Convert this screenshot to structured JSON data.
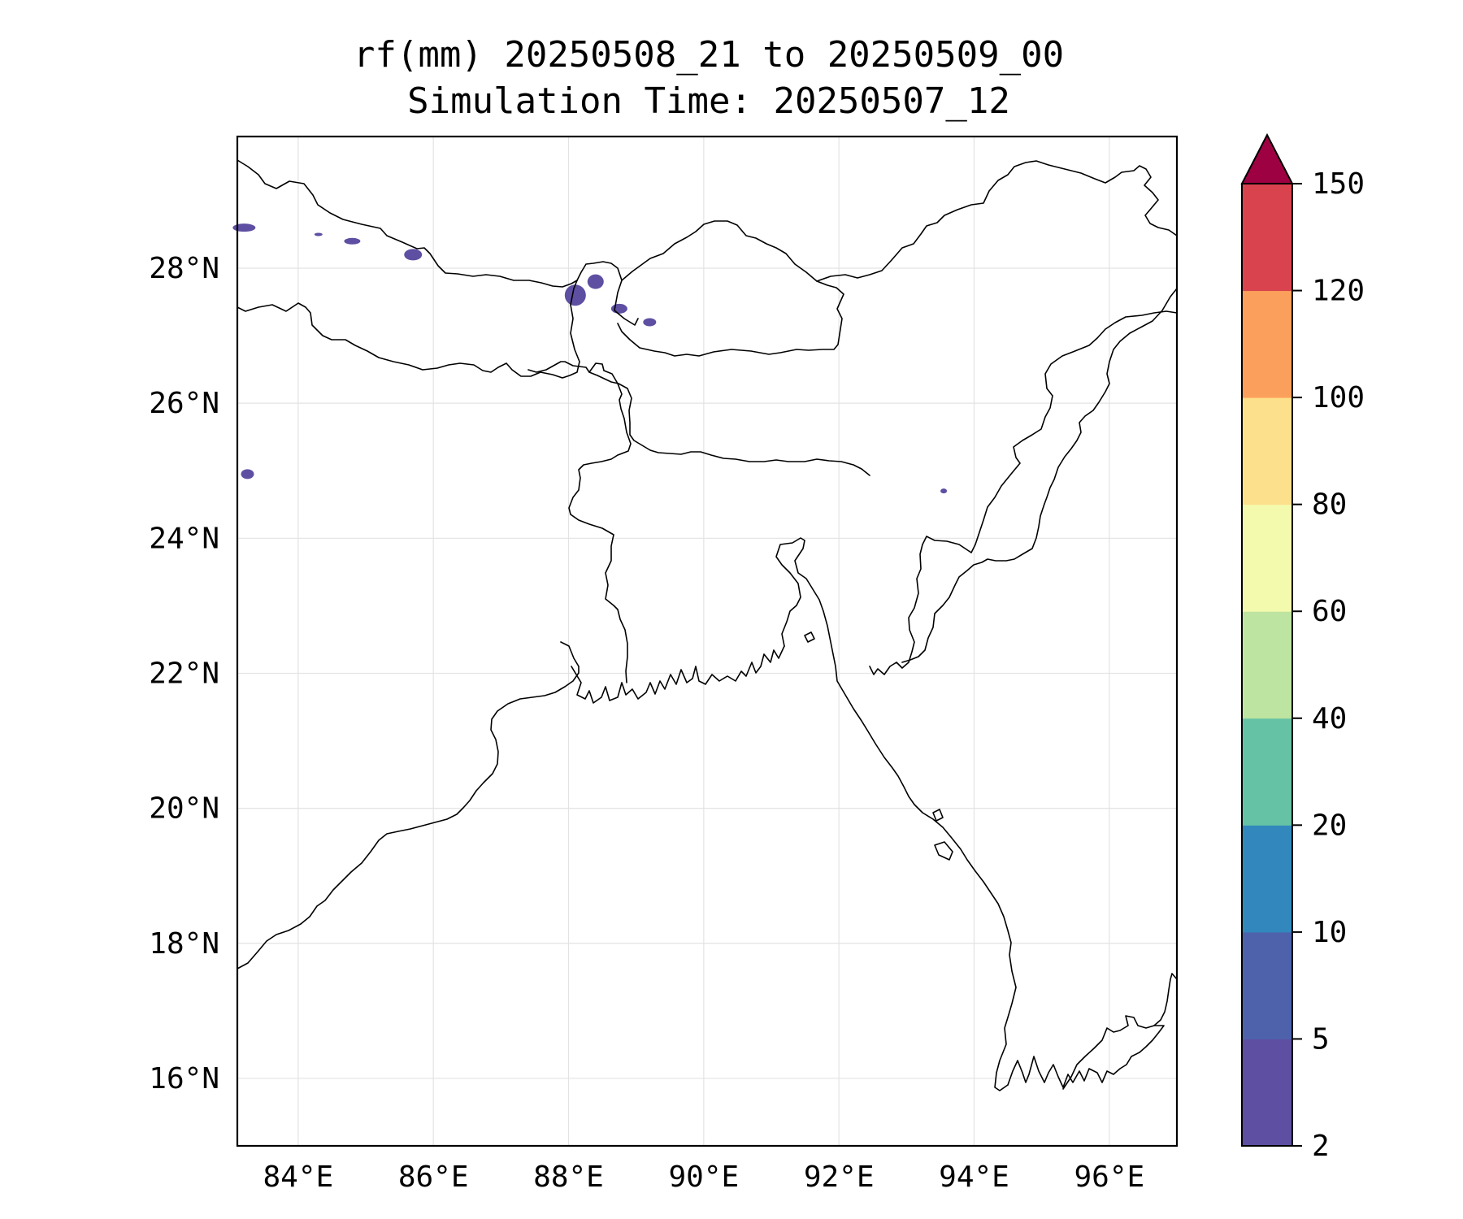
{
  "title": {
    "line1": "rf(mm) 20250508_21 to 20250509_00",
    "line2": "Simulation Time: 20250507_12"
  },
  "map": {
    "lon_range": [
      83.1,
      97.0
    ],
    "lat_range": [
      15.0,
      29.95
    ],
    "grid": true,
    "x_ticks": [
      {
        "value": 84,
        "label": "84°E"
      },
      {
        "value": 86,
        "label": "86°E"
      },
      {
        "value": 88,
        "label": "88°E"
      },
      {
        "value": 90,
        "label": "90°E"
      },
      {
        "value": 92,
        "label": "92°E"
      },
      {
        "value": 94,
        "label": "94°E"
      },
      {
        "value": 96,
        "label": "96°E"
      }
    ],
    "y_ticks": [
      {
        "value": 16,
        "label": "16°N"
      },
      {
        "value": 18,
        "label": "18°N"
      },
      {
        "value": 20,
        "label": "20°N"
      },
      {
        "value": 22,
        "label": "22°N"
      },
      {
        "value": 24,
        "label": "24°N"
      },
      {
        "value": 26,
        "label": "26°N"
      },
      {
        "value": 28,
        "label": "28°N"
      }
    ],
    "rain_color": "#5e4fa2",
    "rain_areas": [
      {
        "name": "rain-area-west-nepal-1",
        "center": [
          83.2,
          28.6
        ]
      },
      {
        "name": "rain-area-west-nepal-2",
        "center": [
          84.3,
          28.5
        ]
      },
      {
        "name": "rain-area-nepal-3",
        "center": [
          84.8,
          28.4
        ]
      },
      {
        "name": "rain-area-nepal-4",
        "center": [
          85.7,
          28.2
        ]
      },
      {
        "name": "rain-area-sikkim-1",
        "center": [
          88.1,
          27.6
        ]
      },
      {
        "name": "rain-area-sikkim-2",
        "center": [
          88.4,
          27.8
        ]
      },
      {
        "name": "rain-area-bhutan-west",
        "center": [
          88.75,
          27.4
        ]
      },
      {
        "name": "rain-area-bhutan-west-2",
        "center": [
          89.2,
          27.2
        ]
      },
      {
        "name": "rain-area-bihar",
        "center": [
          83.25,
          24.95
        ]
      },
      {
        "name": "rain-area-manipur",
        "center": [
          93.55,
          24.7
        ]
      }
    ]
  },
  "colorbar": {
    "levels": [
      "2",
      "5",
      "10",
      "20",
      "40",
      "60",
      "80",
      "100",
      "120",
      "150"
    ],
    "colors": [
      "#5e4fa2",
      "#4d62ab",
      "#3288bd",
      "#66c2a5",
      "#bde4a0",
      "#f4faad",
      "#fde08b",
      "#fba05c",
      "#d8434e",
      "#9e0142"
    ],
    "extend": "max",
    "extend_color": "#9e0142"
  }
}
